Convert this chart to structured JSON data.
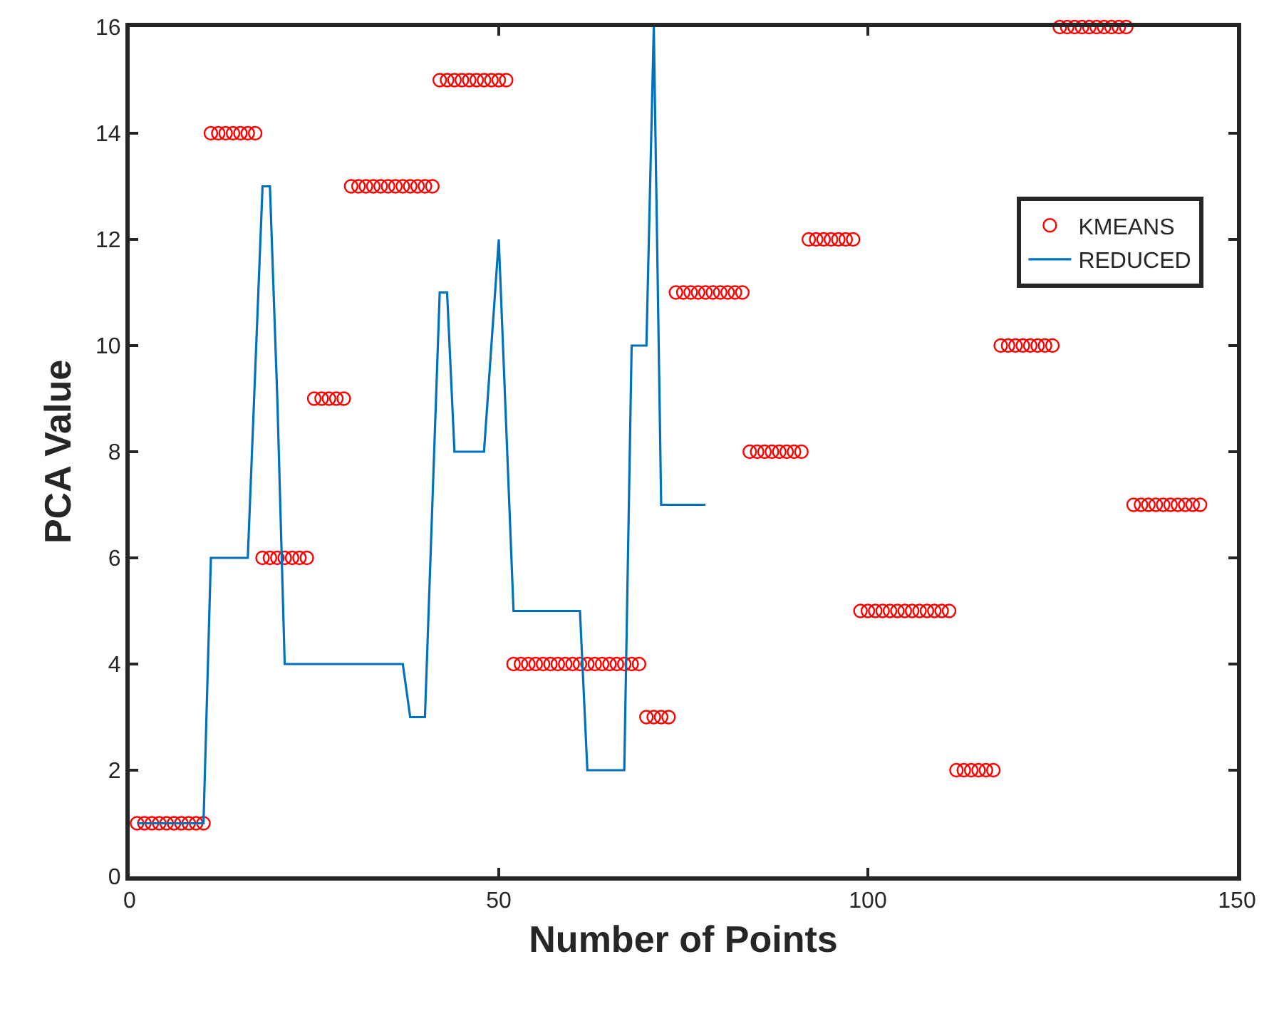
{
  "chart_data": {
    "type": "scatter",
    "xlabel": "Number of Points",
    "ylabel": "PCA Value",
    "xlim": [
      0,
      150
    ],
    "xticks": [
      0,
      50,
      100,
      150
    ],
    "ylim": [
      0,
      16
    ],
    "yticks": [
      0,
      2,
      4,
      6,
      8,
      10,
      12,
      14,
      16
    ],
    "legend": "top right",
    "series": [
      {
        "name": "KMEANS",
        "marker": "circle",
        "color": "#ff0000",
        "x": [
          1,
          2,
          3,
          4,
          5,
          6,
          7,
          8,
          9,
          10,
          11,
          12,
          13,
          14,
          15,
          16,
          17,
          18,
          19,
          20,
          21,
          22,
          23,
          24,
          25,
          26,
          27,
          28,
          29,
          30,
          31,
          32,
          33,
          34,
          35,
          36,
          37,
          38,
          39,
          40,
          41,
          42,
          43,
          44,
          45,
          46,
          47,
          48,
          49,
          50,
          51,
          52,
          53,
          54,
          55,
          56,
          57,
          58,
          59,
          60,
          61,
          62,
          63,
          64,
          65,
          66,
          67,
          68,
          69,
          70,
          71,
          72,
          73,
          74,
          75,
          76,
          77,
          78,
          79,
          80,
          81,
          82,
          83,
          84,
          85,
          86,
          87,
          88,
          89,
          90,
          91,
          92,
          93,
          94,
          95,
          96,
          97,
          98,
          99,
          100,
          101,
          102,
          103,
          104,
          105,
          106,
          107,
          108,
          109,
          110,
          111,
          112,
          113,
          114,
          115,
          116,
          117,
          118,
          119,
          120,
          121,
          122,
          123,
          124,
          125,
          126,
          127,
          128,
          129,
          130,
          131,
          132,
          133,
          134,
          135,
          136,
          137,
          138,
          139,
          140,
          141,
          142,
          143,
          144,
          145
        ],
        "values": [
          1,
          1,
          1,
          1,
          1,
          1,
          1,
          1,
          1,
          1,
          14,
          14,
          14,
          14,
          14,
          14,
          14,
          6,
          6,
          6,
          6,
          6,
          6,
          6,
          9,
          9,
          9,
          9,
          9,
          13,
          13,
          13,
          13,
          13,
          13,
          13,
          13,
          13,
          13,
          13,
          13,
          15,
          15,
          15,
          15,
          15,
          15,
          15,
          15,
          15,
          15,
          4,
          4,
          4,
          4,
          4,
          4,
          4,
          4,
          4,
          4,
          4,
          4,
          4,
          4,
          4,
          4,
          4,
          4,
          3,
          3,
          3,
          3,
          11,
          11,
          11,
          11,
          11,
          11,
          11,
          11,
          11,
          11,
          8,
          8,
          8,
          8,
          8,
          8,
          8,
          8,
          12,
          12,
          12,
          12,
          12,
          12,
          12,
          5,
          5,
          5,
          5,
          5,
          5,
          5,
          5,
          5,
          5,
          5,
          5,
          5,
          2,
          2,
          2,
          2,
          2,
          2,
          10,
          10,
          10,
          10,
          10,
          10,
          10,
          10,
          16,
          16,
          16,
          16,
          16,
          16,
          16,
          16,
          16,
          16,
          7,
          7,
          7,
          7,
          7,
          7,
          7,
          7,
          7,
          7
        ]
      },
      {
        "name": "REDUCED",
        "type": "line",
        "line_style": "solid",
        "color": "#0072bd",
        "x": [
          1,
          10,
          11,
          16,
          17,
          18,
          19,
          20,
          21,
          37,
          38,
          40,
          41,
          42,
          43,
          44,
          48,
          50,
          52,
          61,
          62,
          67,
          68,
          70,
          71,
          72,
          78
        ],
        "values": [
          1,
          1,
          6,
          6,
          9.5,
          13,
          13,
          9,
          4,
          4,
          3,
          3,
          7,
          11,
          11,
          8,
          8,
          12,
          5,
          5,
          2,
          2,
          10,
          10,
          16,
          7,
          7
        ]
      }
    ]
  }
}
